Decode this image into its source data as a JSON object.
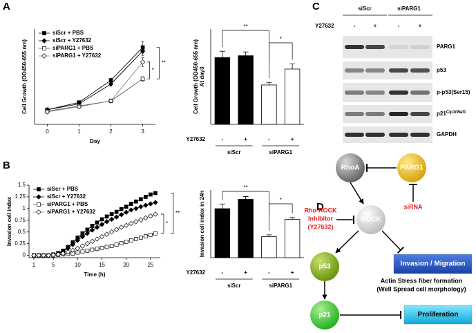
{
  "panel_labels": [
    "A",
    "B",
    "C",
    "D"
  ],
  "chart_data": [
    {
      "type": "line",
      "x": [
        0,
        1,
        2,
        3
      ],
      "xlim": [
        -0.4,
        3.4
      ],
      "xticks": [
        0,
        1,
        2,
        3
      ],
      "xlabel": "Day",
      "ylabel": "Cell Growth (OD450-655 nm)",
      "ylim": [
        0,
        1.3
      ],
      "series": [
        {
          "name": "siScr + PBS",
          "color": "#000000",
          "marker": "square",
          "marker_fill": "#000000",
          "values": [
            0.2,
            0.3,
            0.6,
            1.05
          ],
          "errors": [
            0.02,
            0.02,
            0.03,
            0.08
          ]
        },
        {
          "name": "siScr + Y27632",
          "color": "#000000",
          "marker": "diamond",
          "marker_fill": "#000000",
          "values": [
            0.2,
            0.28,
            0.55,
            1.0
          ],
          "errors": [
            0.02,
            0.02,
            0.03,
            0.06
          ]
        },
        {
          "name": "siPARG1 + PBS",
          "color": "#555555",
          "marker": "square",
          "marker_fill": "#ffffff",
          "values": [
            0.18,
            0.25,
            0.32,
            0.62
          ],
          "errors": [
            0.02,
            0.02,
            0.02,
            0.03
          ]
        },
        {
          "name": "siPARG1 + Y27632",
          "color": "#888888",
          "marker": "diamond",
          "marker_fill": "#ffffff",
          "values": [
            0.17,
            0.24,
            0.32,
            0.85
          ],
          "errors": [
            0.02,
            0.02,
            0.02,
            0.06
          ]
        }
      ],
      "annotations": [
        "*",
        "**"
      ]
    },
    {
      "type": "bar",
      "categories": [
        "-",
        "+",
        "-",
        "+"
      ],
      "category_label": "Y27632",
      "groups": [
        "siScr",
        "siPARG1"
      ],
      "values": [
        1.05,
        1.08,
        0.62,
        0.87
      ],
      "errors": [
        0.1,
        0.06,
        0.04,
        0.08
      ],
      "colors": [
        "#000000",
        "#000000",
        "#ffffff",
        "#ffffff"
      ],
      "ylabel": [
        "Cell Growth (OD450-655 nm)",
        "At day3"
      ],
      "ylim": [
        0,
        1.5
      ],
      "annotations": [
        "**",
        "*"
      ]
    },
    {
      "type": "line",
      "x": [
        1,
        2,
        3,
        4,
        5,
        6,
        7,
        8,
        9,
        10,
        11,
        12,
        13,
        14,
        15,
        16,
        17,
        18,
        19,
        20,
        21,
        22,
        23,
        24,
        25,
        26
      ],
      "xlim": [
        0,
        27
      ],
      "xticks": [
        1,
        5,
        10,
        15,
        20,
        25
      ],
      "xlabel": "Time (h)",
      "ylabel": "Invasion cell index",
      "ylim": [
        -0.05,
        1.5
      ],
      "yticks": [
        0,
        0.25,
        0.5,
        0.75,
        1,
        1.25,
        1.5
      ],
      "series": [
        {
          "name": "siScr + PBS",
          "color": "#000000",
          "marker": "square",
          "marker_fill": "#000000",
          "values": [
            0,
            0,
            0,
            0,
            0.02,
            0.05,
            0.1,
            0.18,
            0.28,
            0.38,
            0.47,
            0.55,
            0.63,
            0.7,
            0.77,
            0.83,
            0.88,
            0.93,
            0.99,
            1.04,
            1.1,
            1.15,
            1.2,
            1.25,
            1.3,
            1.33
          ]
        },
        {
          "name": "siScr + Y27632",
          "color": "#000000",
          "marker": "diamond",
          "marker_fill": "#000000",
          "values": [
            0,
            0,
            0,
            0,
            0.01,
            0.04,
            0.08,
            0.15,
            0.23,
            0.32,
            0.4,
            0.47,
            0.54,
            0.6,
            0.66,
            0.72,
            0.77,
            0.82,
            0.87,
            0.92,
            0.97,
            1.0,
            1.04,
            1.07,
            1.1,
            1.13
          ]
        },
        {
          "name": "siPARG1 + PBS",
          "color": "#555555",
          "marker": "square",
          "marker_fill": "#ffffff",
          "values": [
            0,
            0,
            0,
            0,
            0,
            0.01,
            0.02,
            0.03,
            0.04,
            0.06,
            0.08,
            0.1,
            0.12,
            0.14,
            0.16,
            0.18,
            0.2,
            0.23,
            0.26,
            0.29,
            0.32,
            0.35,
            0.38,
            0.41,
            0.44,
            0.47
          ]
        },
        {
          "name": "siPARG1 + Y27632",
          "color": "#888888",
          "marker": "diamond",
          "marker_fill": "#ffffff",
          "values": [
            0,
            0,
            0,
            0,
            0.01,
            0.02,
            0.04,
            0.07,
            0.11,
            0.15,
            0.2,
            0.25,
            0.3,
            0.35,
            0.4,
            0.45,
            0.5,
            0.55,
            0.6,
            0.64,
            0.68,
            0.72,
            0.76,
            0.8,
            0.84,
            0.88
          ]
        }
      ],
      "annotations": [
        "*",
        "**"
      ]
    },
    {
      "type": "bar",
      "categories": [
        "-",
        "+",
        "-",
        "+"
      ],
      "category_label": "Y27632",
      "groups": [
        "siScr",
        "siPARG1"
      ],
      "values": [
        1.05,
        1.25,
        0.45,
        0.82
      ],
      "errors": [
        0.1,
        0.06,
        0.04,
        0.04
      ],
      "colors": [
        "#000000",
        "#000000",
        "#ffffff",
        "#ffffff"
      ],
      "ylabel": [
        "Invasion cell index in 24h"
      ],
      "ylim": [
        0,
        1.45
      ],
      "annotations": [
        "**",
        "*"
      ]
    }
  ],
  "blot": {
    "groups": [
      "siScr",
      "siPARG1"
    ],
    "treatment_label": "Y27632",
    "treatment": [
      "-",
      "+",
      "-",
      "+"
    ],
    "rows": [
      {
        "name": "PARG1"
      },
      {
        "name": "p53"
      },
      {
        "name": "p-p53(Ser15)"
      },
      {
        "name": "p21",
        "sup": "Cip1/Waf1"
      },
      {
        "name": "GAPDH"
      }
    ]
  },
  "diagram": {
    "nodes": [
      "RhoA",
      "PARG1",
      "ROCK",
      "p53",
      "p21"
    ],
    "boxes": [
      "Invasion / Migration",
      "Proliferation"
    ],
    "inhibitor": [
      "Rho-ROCK",
      "Inhibitor",
      "(Y27632)"
    ],
    "sirna": "siRNA",
    "notes": [
      "Actin Stress fiber formation",
      "(Well Spread cell morphology)"
    ]
  }
}
